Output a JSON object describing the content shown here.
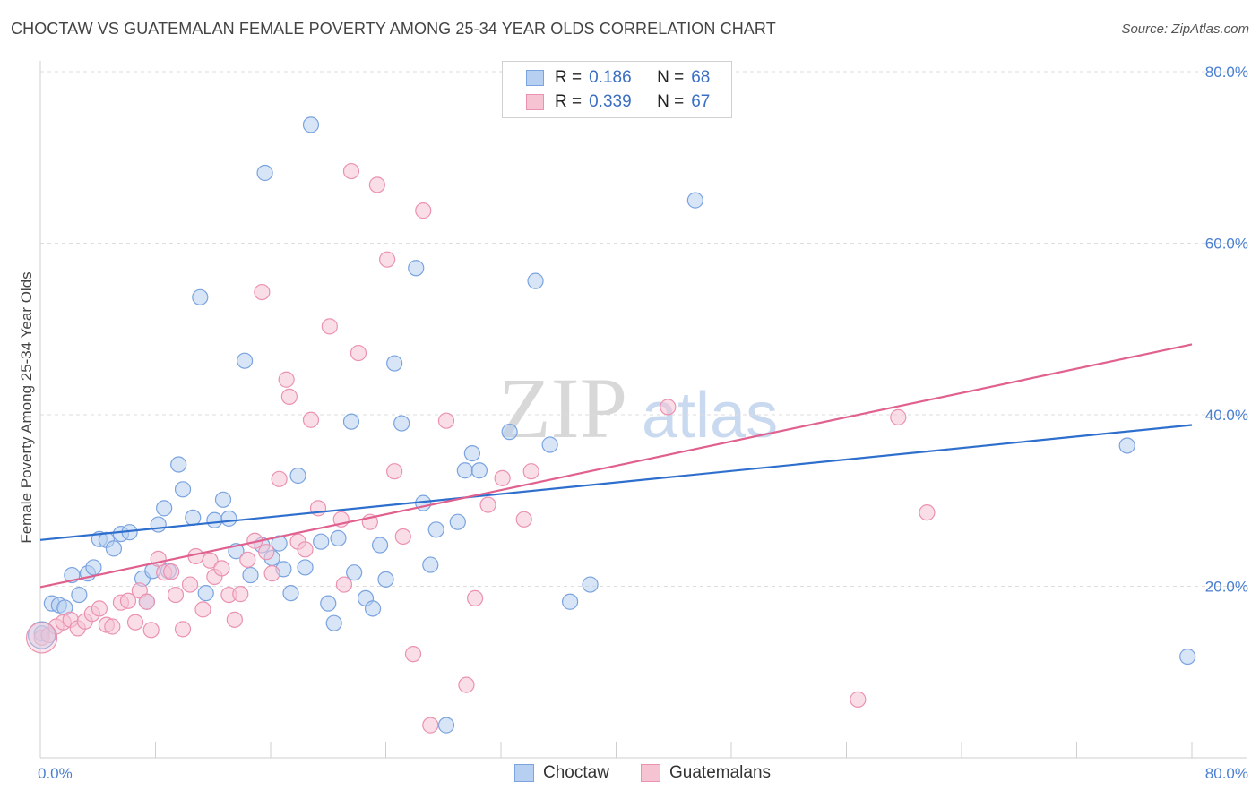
{
  "title": "CHOCTAW VS GUATEMALAN FEMALE POVERTY AMONG 25-34 YEAR OLDS CORRELATION CHART",
  "source": "Source: ZipAtlas.com",
  "watermark": {
    "zip": "ZIP",
    "atlas": "atlas"
  },
  "legend": [
    {
      "r_label": "R =",
      "r_value": "0.186",
      "n_label": "N =",
      "n_value": "68"
    },
    {
      "r_label": "R =",
      "r_value": "0.339",
      "n_label": "N =",
      "n_value": "67"
    }
  ],
  "bottom_legend": [
    "Choctaw",
    "Guatemalans"
  ],
  "colors": {
    "choctaw_fill": "#b7cff0",
    "choctaw_stroke": "#7aa3e0",
    "choctaw_line": "#2e6fcd",
    "guatemalan_fill": "#f6c3d3",
    "guatemalan_stroke": "#eb92b0",
    "guatemalan_line": "#e0608e",
    "tick_label": "#4a7fd0",
    "grid": "#dddddd"
  },
  "chart_data": {
    "type": "scatter",
    "title": "CHOCTAW VS GUATEMALAN FEMALE POVERTY AMONG 25-34 YEAR OLDS CORRELATION CHART",
    "xlabel": "",
    "ylabel": "Female Poverty Among 25-34 Year Olds",
    "xlim": [
      0,
      80
    ],
    "ylim": [
      0,
      80
    ],
    "x_tick_labels": [
      "0.0%",
      "80.0%"
    ],
    "y_tick_labels": [
      "20.0%",
      "40.0%",
      "60.0%",
      "80.0%"
    ],
    "y_ticks": [
      20,
      40,
      60,
      80
    ],
    "grid": "horizontal dashed",
    "legend_position": "top-center",
    "series": [
      {
        "name": "Choctaw",
        "r": 0.186,
        "n": 68,
        "trend": [
          [
            0,
            25.4
          ],
          [
            80,
            38.8
          ]
        ],
        "points": [
          [
            0.1,
            14.5
          ],
          [
            0.8,
            18
          ],
          [
            1.3,
            17.8
          ],
          [
            1.7,
            17.5
          ],
          [
            2.2,
            21.3
          ],
          [
            2.7,
            19
          ],
          [
            3.3,
            21.5
          ],
          [
            3.7,
            22.2
          ],
          [
            4.1,
            25.5
          ],
          [
            4.6,
            25.4
          ],
          [
            5.1,
            24.4
          ],
          [
            5.6,
            26.1
          ],
          [
            6.2,
            26.3
          ],
          [
            7.1,
            20.9
          ],
          [
            7.4,
            18.2
          ],
          [
            7.8,
            21.8
          ],
          [
            8.2,
            27.2
          ],
          [
            8.6,
            29.1
          ],
          [
            8.9,
            21.8
          ],
          [
            9.6,
            34.2
          ],
          [
            9.9,
            31.3
          ],
          [
            10.6,
            28
          ],
          [
            11.1,
            53.7
          ],
          [
            11.5,
            19.2
          ],
          [
            12.1,
            27.7
          ],
          [
            12.7,
            30.1
          ],
          [
            13.1,
            27.9
          ],
          [
            13.6,
            24.1
          ],
          [
            14.2,
            46.3
          ],
          [
            14.6,
            21.3
          ],
          [
            15.4,
            24.8
          ],
          [
            15.6,
            68.2
          ],
          [
            16.1,
            23.3
          ],
          [
            16.6,
            25
          ],
          [
            16.9,
            22
          ],
          [
            17.4,
            19.2
          ],
          [
            17.9,
            32.9
          ],
          [
            18.4,
            22.2
          ],
          [
            18.8,
            73.8
          ],
          [
            19.5,
            25.2
          ],
          [
            20,
            18
          ],
          [
            20.4,
            15.7
          ],
          [
            20.7,
            25.6
          ],
          [
            21.6,
            39.2
          ],
          [
            21.8,
            21.6
          ],
          [
            22.6,
            18.6
          ],
          [
            23.1,
            17.4
          ],
          [
            23.6,
            24.8
          ],
          [
            24,
            20.8
          ],
          [
            24.6,
            46
          ],
          [
            25.1,
            39
          ],
          [
            26.1,
            57.1
          ],
          [
            26.6,
            29.7
          ],
          [
            27.1,
            22.5
          ],
          [
            27.5,
            26.6
          ],
          [
            28.2,
            3.8
          ],
          [
            29,
            27.5
          ],
          [
            29.5,
            33.5
          ],
          [
            30,
            35.5
          ],
          [
            30.5,
            33.5
          ],
          [
            32.6,
            38
          ],
          [
            34.4,
            55.6
          ],
          [
            35.4,
            36.5
          ],
          [
            36.8,
            18.2
          ],
          [
            38.2,
            20.2
          ],
          [
            45.5,
            65
          ],
          [
            75.5,
            36.4
          ],
          [
            79.7,
            11.8
          ]
        ]
      },
      {
        "name": "Guatemalans",
        "r": 0.339,
        "n": 67,
        "trend": [
          [
            0,
            19.9
          ],
          [
            80,
            48.2
          ]
        ],
        "points": [
          [
            0.1,
            14
          ],
          [
            0.6,
            14.3
          ],
          [
            1.1,
            15.3
          ],
          [
            1.6,
            15.8
          ],
          [
            2.1,
            16.1
          ],
          [
            2.6,
            15.1
          ],
          [
            3.1,
            15.9
          ],
          [
            3.6,
            16.8
          ],
          [
            4.1,
            17.4
          ],
          [
            4.6,
            15.5
          ],
          [
            5,
            15.3
          ],
          [
            5.6,
            18.1
          ],
          [
            6.1,
            18.3
          ],
          [
            6.6,
            15.8
          ],
          [
            6.9,
            19.5
          ],
          [
            7.4,
            18.2
          ],
          [
            7.7,
            14.9
          ],
          [
            8.2,
            23.2
          ],
          [
            8.6,
            21.6
          ],
          [
            9.1,
            21.7
          ],
          [
            9.4,
            19
          ],
          [
            9.9,
            15
          ],
          [
            10.4,
            20.2
          ],
          [
            10.8,
            23.5
          ],
          [
            11.3,
            17.3
          ],
          [
            11.8,
            23
          ],
          [
            12.1,
            21.1
          ],
          [
            12.6,
            22.1
          ],
          [
            13.1,
            19
          ],
          [
            13.5,
            16.1
          ],
          [
            13.9,
            19.1
          ],
          [
            14.4,
            23.1
          ],
          [
            14.9,
            25.3
          ],
          [
            15.4,
            54.3
          ],
          [
            15.7,
            24
          ],
          [
            16.1,
            21.5
          ],
          [
            16.6,
            32.5
          ],
          [
            17.1,
            44.1
          ],
          [
            17.3,
            42.1
          ],
          [
            17.9,
            25.2
          ],
          [
            18.4,
            24.3
          ],
          [
            18.8,
            39.4
          ],
          [
            19.3,
            29.1
          ],
          [
            20.1,
            50.3
          ],
          [
            20.9,
            27.8
          ],
          [
            21.1,
            20.2
          ],
          [
            21.6,
            68.4
          ],
          [
            22.1,
            47.2
          ],
          [
            22.9,
            27.5
          ],
          [
            23.4,
            66.8
          ],
          [
            24.1,
            58.1
          ],
          [
            24.6,
            33.4
          ],
          [
            25.2,
            25.8
          ],
          [
            25.9,
            12.1
          ],
          [
            26.6,
            63.8
          ],
          [
            27.1,
            3.8
          ],
          [
            28.2,
            39.3
          ],
          [
            29.6,
            8.5
          ],
          [
            30.2,
            18.6
          ],
          [
            31.1,
            29.5
          ],
          [
            32.1,
            32.6
          ],
          [
            33.6,
            27.8
          ],
          [
            34.1,
            33.4
          ],
          [
            43.6,
            40.9
          ],
          [
            56.8,
            6.8
          ],
          [
            59.6,
            39.7
          ],
          [
            61.6,
            28.6
          ]
        ]
      }
    ]
  }
}
